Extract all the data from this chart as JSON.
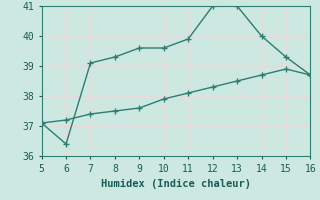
{
  "line1_x": [
    5,
    6,
    7,
    8,
    9,
    10,
    11,
    12,
    13,
    14,
    15,
    16
  ],
  "line1_y": [
    37.1,
    36.4,
    39.1,
    39.3,
    39.6,
    39.6,
    39.9,
    41.0,
    41.0,
    40.0,
    39.3,
    38.7
  ],
  "line2_x": [
    5,
    6,
    7,
    8,
    9,
    10,
    11,
    12,
    13,
    14,
    15,
    16
  ],
  "line2_y": [
    37.1,
    37.2,
    37.4,
    37.5,
    37.6,
    37.9,
    38.1,
    38.3,
    38.5,
    38.7,
    38.9,
    38.7
  ],
  "line_color": "#2e7d72",
  "bg_color": "#cce8e0",
  "grid_color": "#f0f0f0",
  "xlabel": "Humidex (Indice chaleur)",
  "xlim": [
    5,
    16
  ],
  "ylim": [
    36,
    41
  ],
  "xticks": [
    5,
    6,
    7,
    8,
    9,
    10,
    11,
    12,
    13,
    14,
    15,
    16
  ],
  "yticks": [
    36,
    37,
    38,
    39,
    40,
    41
  ],
  "xlabel_fontsize": 7.5,
  "tick_fontsize": 7,
  "marker_size": 3,
  "line_width": 1.0
}
